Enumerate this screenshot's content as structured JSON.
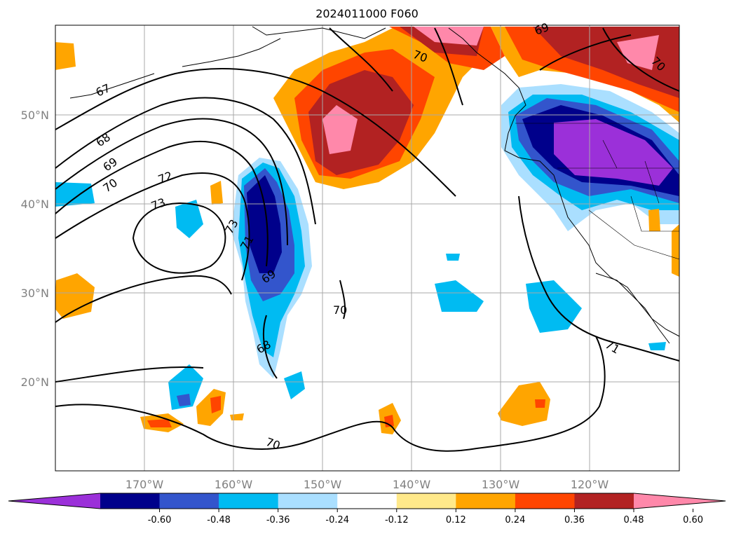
{
  "title": "2024011000 F060",
  "lat_labels": [
    "50°N",
    "40°N",
    "30°N",
    "20°N"
  ],
  "lon_labels": [
    "170°W",
    "160°W",
    "150°W",
    "140°W",
    "130°W",
    "120°W"
  ],
  "colorbar": {
    "ticks": [
      "-0.60",
      "-0.48",
      "-0.36",
      "-0.24",
      "-0.12",
      "0.12",
      "0.24",
      "0.36",
      "0.48",
      "0.60"
    ],
    "colors": [
      "#9b30d9",
      "#00008b",
      "#3355cc",
      "#00bbf2",
      "#aadfff",
      "#ffffff",
      "#ffe98a",
      "#ffa500",
      "#ff4500",
      "#b22222",
      "#ff88aa"
    ]
  },
  "contour_labels": [
    "67",
    "68",
    "69",
    "70",
    "72",
    "73",
    "73",
    "71",
    "69",
    "70",
    "68",
    "70",
    "70",
    "69",
    "70",
    "71"
  ]
}
